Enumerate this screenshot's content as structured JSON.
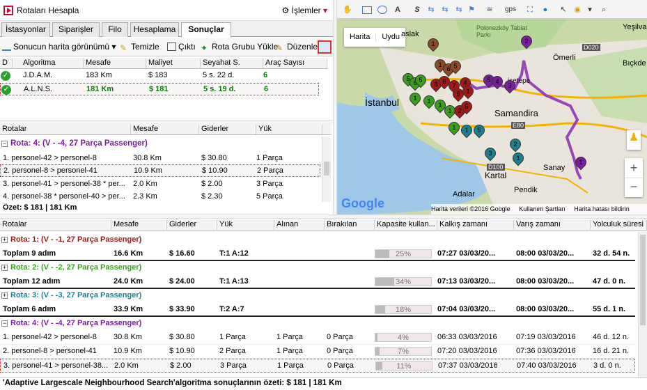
{
  "window": {
    "title": "Rotaları Hesapla",
    "menu_label": "İşlemler"
  },
  "tabs": [
    "İstasyonlar",
    "Siparişler",
    "Filo",
    "Hesaplama",
    "Sonuçlar"
  ],
  "toolbar": {
    "map_view": "Sonucun harita görünümü",
    "clear": "Temizle",
    "output": "Çıktı",
    "load_route_group": "Rota Grubu Yükle",
    "edit": "Düzenle"
  },
  "algo_table": {
    "headers": [
      "D",
      "Algoritma",
      "Mesafe",
      "Maliyet",
      "Seyahat S.",
      "Araç Sayısı"
    ],
    "rows": [
      {
        "algo": "J.D.A.M.",
        "distance": "183 Km",
        "cost": "$ 183",
        "travel": "5 s. 22 d.",
        "vehicles": "6"
      },
      {
        "algo": "A.L.N.S.",
        "distance": "181 Km",
        "cost": "$ 181",
        "travel": "5 s. 19 d.",
        "vehicles": "6"
      }
    ]
  },
  "route_table": {
    "headers": [
      "Rotalar",
      "Mesafe",
      "Giderler",
      "Yük"
    ],
    "group": "Rota: 4: (V - -4, 27 Parça Passenger)",
    "rows": [
      {
        "name": "1. personel-42 > personel-8",
        "distance": "30.8 Km",
        "cost": "$ 30.80",
        "load": "1 Parça"
      },
      {
        "name": "2. personel-8 > personel-41",
        "distance": "10.9 Km",
        "cost": "$ 10.90",
        "load": "2 Parça"
      },
      {
        "name": "3. personel-41 > personel-38 * per...",
        "distance": "2.0 Km",
        "cost": "$ 2.00",
        "load": "3 Parça"
      },
      {
        "name": "4. personel-38 * personel-40 > per...",
        "distance": "2.3 Km",
        "cost": "$ 2.30",
        "load": "5 Parça"
      }
    ],
    "summary": "Özet: $ 181  |  181 Km"
  },
  "map": {
    "type_map": "Harita",
    "type_sat": "Uydu",
    "labels": {
      "istanbul": "İstanbul",
      "samandira": "Samandira",
      "kartal": "Kartal",
      "pendik": "Pendik",
      "adalar": "Adalar",
      "sanay": "Sanay",
      "omerli": "Ömerli",
      "yesilva": "Yeşilva",
      "bicakci": "Bıçkde",
      "polonez": "Polonezköy Tabiat Parkı",
      "aslak": "aslak",
      "isinetepe": "işetepe",
      "e80": "E80",
      "d020": "D020",
      "d100": "D100"
    },
    "attribution": "Harita verileri ©2016 Google",
    "terms": "Kullanım Şartları",
    "report": "Harita hatası bildirin",
    "google": "Google",
    "tools": {
      "gps": "gps"
    }
  },
  "bottom_table": {
    "headers": [
      "Rotalar",
      "Mesafe",
      "Giderler",
      "Yük",
      "Alınan",
      "Bırakılan",
      "Kapasite kullan...",
      "Kalkış zamanı",
      "Varış zamanı",
      "Yolculuk süresi"
    ],
    "routes": [
      {
        "title": "Rota: 1: (V - -1, 27 Parça Passenger)",
        "color": "#a01818",
        "total": {
          "steps": "Toplam 9 adım",
          "distance": "16.6 Km",
          "cost": "$ 16.60",
          "load": "T:1 A:12",
          "cap": 25,
          "cap_label": "25%",
          "dep": "07:27 03/03/20...",
          "arr": "08:00 03/03/20...",
          "dur": "32 d. 54 n."
        }
      },
      {
        "title": "Rota: 2: (V - -2, 27 Parça Passenger)",
        "color": "#3a9e1e",
        "total": {
          "steps": "Toplam 12 adım",
          "distance": "24.0 Km",
          "cost": "$ 24.00",
          "load": "T:1 A:13",
          "cap": 34,
          "cap_label": "34%",
          "dep": "07:13 03/03/20...",
          "arr": "08:00 03/03/20...",
          "dur": "47 d. 0 n."
        }
      },
      {
        "title": "Rota: 3: (V - -3, 27 Parça Passenger)",
        "color": "#1e7f8e",
        "total": {
          "steps": "Toplam 6 adım",
          "distance": "33.9 Km",
          "cost": "$ 33.90",
          "load": "T:2 A:7",
          "cap": 18,
          "cap_label": "18%",
          "dep": "07:04 03/03/20...",
          "arr": "08:00 03/03/20...",
          "dur": "55 d. 1 n."
        }
      }
    ],
    "route4": {
      "title": "Rota: 4: (V - -4, 27 Parça Passenger)",
      "color": "#7a1e9e",
      "rows": [
        {
          "name": "1. personel-42 > personel-8",
          "distance": "30.8 Km",
          "cost": "$ 30.80",
          "load": "1 Parça",
          "picked": "1 Parça",
          "dropped": "0 Parça",
          "cap": 4,
          "cap_label": "4%",
          "dep": "06:33 03/03/2016",
          "arr": "07:19 03/03/2016",
          "dur": "46 d. 12 n."
        },
        {
          "name": "2. personel-8 > personel-41",
          "distance": "10.9 Km",
          "cost": "$ 10.90",
          "load": "2 Parça",
          "picked": "1 Parça",
          "dropped": "0 Parça",
          "cap": 7,
          "cap_label": "7%",
          "dep": "07:20 03/03/2016",
          "arr": "07:36 03/03/2016",
          "dur": "16 d. 21 n."
        },
        {
          "name": "3. personel-41 > personel-38...",
          "distance": "2.0 Km",
          "cost": "$ 2.00",
          "load": "3 Parça",
          "picked": "1 Parça",
          "dropped": "0 Parça",
          "cap": 11,
          "cap_label": "11%",
          "dep": "07:37 03/03/2016",
          "arr": "07:40 03/03/2016",
          "dur": "3 d. 0 n."
        }
      ]
    },
    "status": "'Adaptive Largescale Neighbourhood Search'algoritma sonuçlarının özeti: $ 181  |  181 Km"
  }
}
